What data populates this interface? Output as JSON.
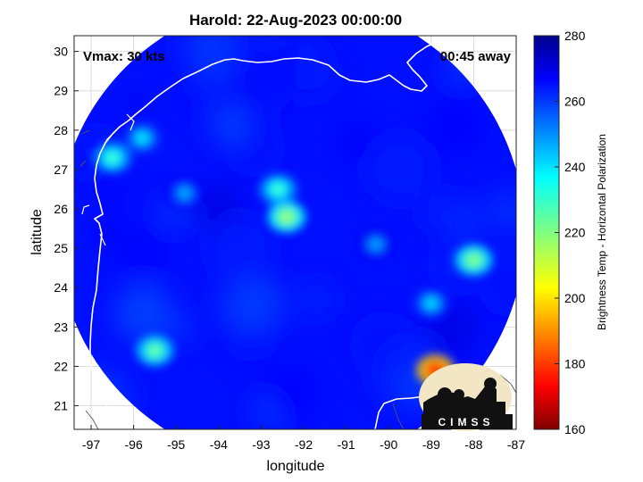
{
  "chart_data": {
    "type": "heatmap",
    "title": "Harold: 22-Aug-2023 00:00:00",
    "xlabel": "longitude",
    "ylabel": "latitude",
    "xlim": [
      -97.4,
      -87.0
    ],
    "ylim": [
      20.4,
      30.4
    ],
    "xticks": [
      -97,
      -96,
      -95,
      -94,
      -93,
      -92,
      -91,
      -90,
      -89,
      -88,
      -87
    ],
    "yticks": [
      21,
      22,
      23,
      24,
      25,
      26,
      27,
      28,
      29,
      30
    ],
    "grid": true,
    "colorbar": {
      "label": "Brightness Temp - Horizontal Polarization",
      "min": 160,
      "max": 280,
      "ticks": [
        160,
        180,
        200,
        220,
        240,
        260,
        280
      ],
      "colormap": "jet"
    },
    "annotations": {
      "vmax": "Vmax: 30 kts",
      "time_offset": "00:45 away"
    },
    "swath": {
      "center": [
        -92.3,
        25.4
      ],
      "radius_deg": 5.5,
      "background_value": 265
    },
    "features": [
      {
        "lon": -92.4,
        "lat": 25.8,
        "value": 215
      },
      {
        "lon": -92.6,
        "lat": 26.5,
        "value": 228
      },
      {
        "lon": -96.5,
        "lat": 27.3,
        "value": 228
      },
      {
        "lon": -95.8,
        "lat": 27.8,
        "value": 238
      },
      {
        "lon": -95.5,
        "lat": 22.4,
        "value": 222
      },
      {
        "lon": -88.0,
        "lat": 24.7,
        "value": 218
      },
      {
        "lon": -88.9,
        "lat": 21.9,
        "value": 175
      },
      {
        "lon": -89.0,
        "lat": 23.6,
        "value": 240
      },
      {
        "lon": -94.8,
        "lat": 26.4,
        "value": 245
      },
      {
        "lon": -90.3,
        "lat": 25.1,
        "value": 246
      }
    ],
    "logo": {
      "text": "CIMSS"
    }
  }
}
